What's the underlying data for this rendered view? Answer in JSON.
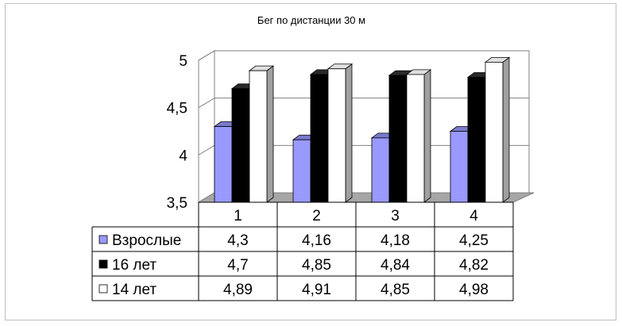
{
  "chart_data": {
    "type": "bar",
    "title": "Бег по дистанции  30 м",
    "xlabel": "",
    "ylabel": "",
    "categories": [
      "1",
      "2",
      "3",
      "4"
    ],
    "ylim": [
      3.5,
      5
    ],
    "yticks": [
      "3,5",
      "4",
      "4,5",
      "5"
    ],
    "grid": true,
    "legend": "data-table-left",
    "series": [
      {
        "name": "Взрослые",
        "values": [
          4.3,
          4.16,
          4.18,
          4.25
        ],
        "labels": [
          "4,3",
          "4,16",
          "4,18",
          "4,25"
        ],
        "color": "#9999ff"
      },
      {
        "name": "16 лет",
        "values": [
          4.7,
          4.85,
          4.84,
          4.82
        ],
        "labels": [
          "4,7",
          "4,85",
          "4,84",
          "4,82"
        ],
        "color": "#000000"
      },
      {
        "name": "14 лет",
        "values": [
          4.89,
          4.91,
          4.85,
          4.98
        ],
        "labels": [
          "4,89",
          "4,91",
          "4,85",
          "4,98"
        ],
        "color": "#ffffff"
      }
    ]
  }
}
